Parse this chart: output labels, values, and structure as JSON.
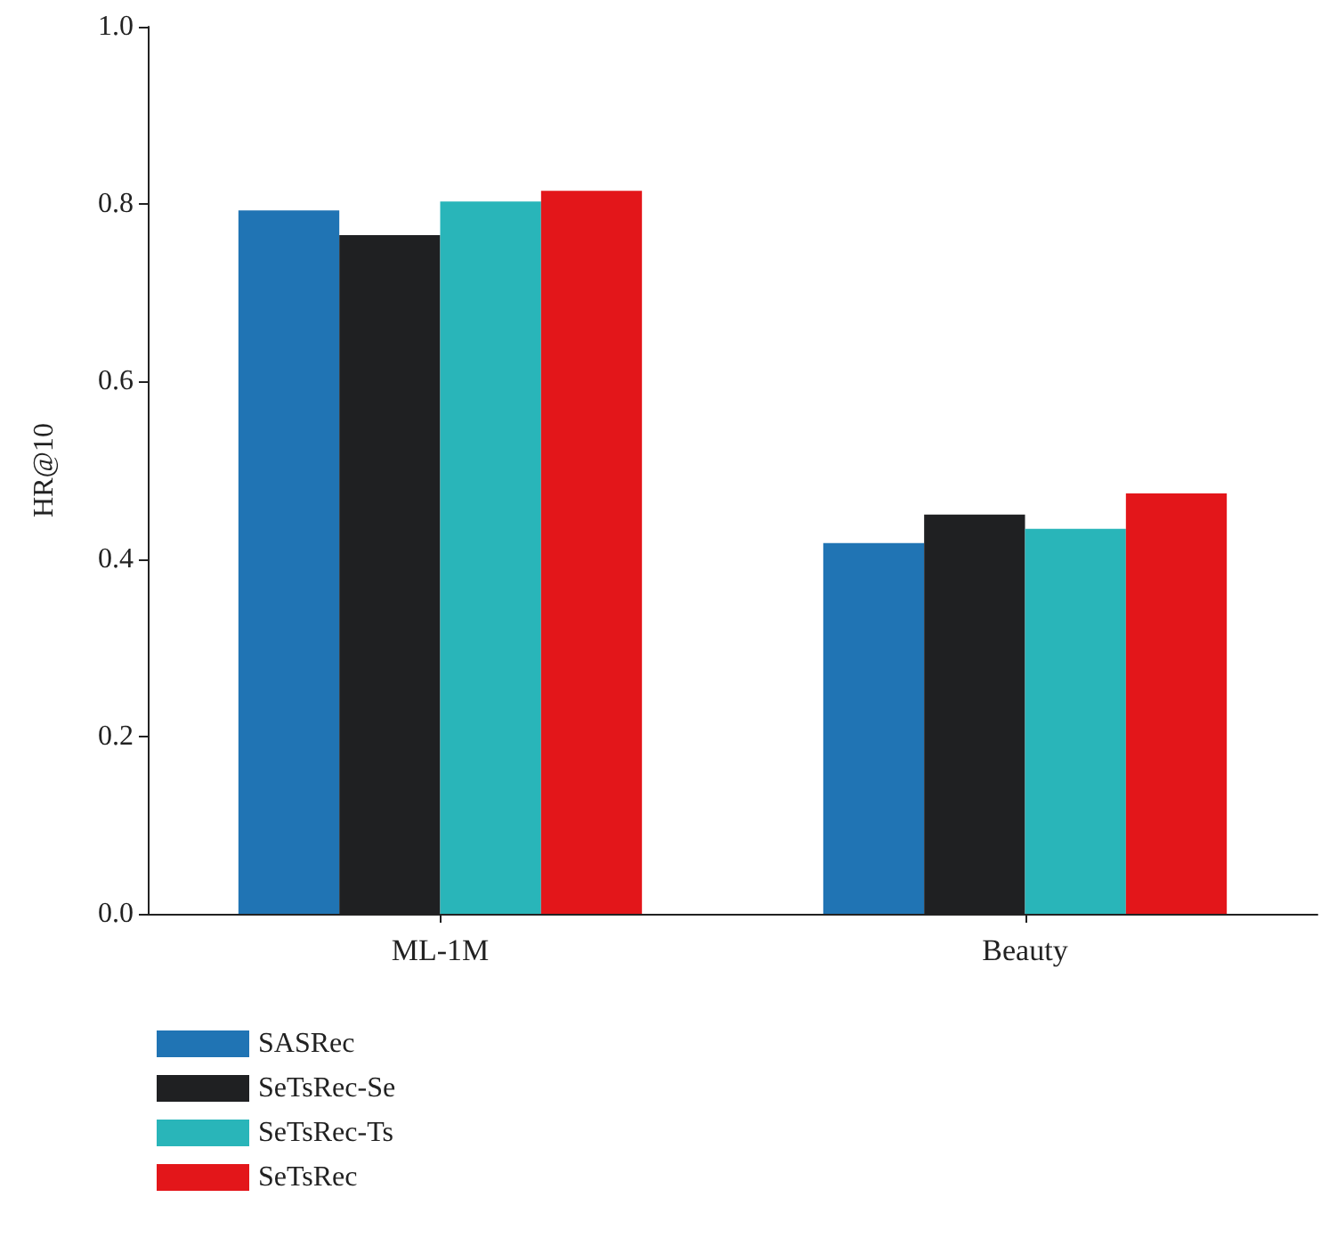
{
  "chart_data": {
    "type": "bar",
    "ylabel": "HR@10",
    "categories": [
      "ML-1M",
      "Beauty"
    ],
    "series": [
      {
        "name": "SASRec",
        "color": "#2074b4",
        "values": [
          0.793,
          0.418
        ]
      },
      {
        "name": "SeTsRec-Se",
        "color": "#1f2022",
        "values": [
          0.765,
          0.45
        ]
      },
      {
        "name": "SeTsRec-Ts",
        "color": "#29b5b9",
        "values": [
          0.803,
          0.434
        ]
      },
      {
        "name": "SeTsRec",
        "color": "#e3161a",
        "values": [
          0.815,
          0.474
        ]
      }
    ],
    "ylim": [
      0,
      1.0
    ],
    "yticks": [
      {
        "value": 0,
        "label": "0.0"
      },
      0.2,
      0.4,
      0.6,
      0.8,
      {
        "value": 1,
        "label": "1.0"
      }
    ],
    "grid": false,
    "legend": "bottom left"
  }
}
